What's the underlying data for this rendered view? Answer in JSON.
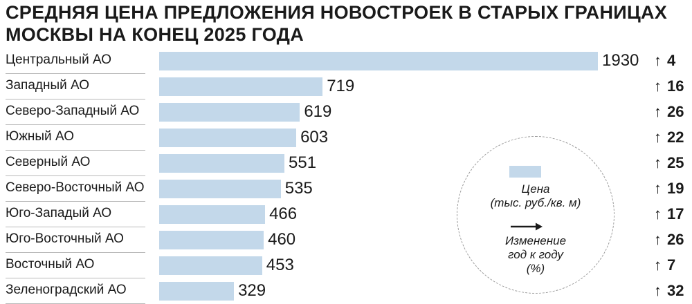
{
  "title": {
    "line1": "Средняя цена предложения новостроек в старых границах",
    "line2": "Москвы на конец 2025 года"
  },
  "chart_data": {
    "type": "bar",
    "orientation": "horizontal",
    "categories": [
      "Центральный АО",
      "Западный АО",
      "Северо-Западный АО",
      "Южный АО",
      "Северный АО",
      "Северо-Восточный АО",
      "Юго-Западый АО",
      "Юго-Восточный АО",
      "Восточный АО",
      "Зеленоградский АО"
    ],
    "series": [
      {
        "name": "Цена (тыс. руб./кв. м)",
        "values": [
          1930,
          719,
          619,
          603,
          551,
          535,
          466,
          460,
          453,
          329
        ]
      },
      {
        "name": "Изменение год к году (%)",
        "values": [
          4,
          16,
          26,
          22,
          25,
          19,
          17,
          26,
          7,
          32
        ]
      }
    ],
    "bar_color": "#c3d8ea",
    "grid": false,
    "legend_position": "right"
  },
  "legend": {
    "price_label_1": "Цена",
    "price_label_2": "(тыс. руб./кв. м)",
    "change_label_1": "Изменение",
    "change_label_2": "год к году",
    "change_label_3": "(%)"
  },
  "icons": {
    "change_marker": "arrow-up-icon",
    "legend_marker": "arrow-right-icon"
  }
}
